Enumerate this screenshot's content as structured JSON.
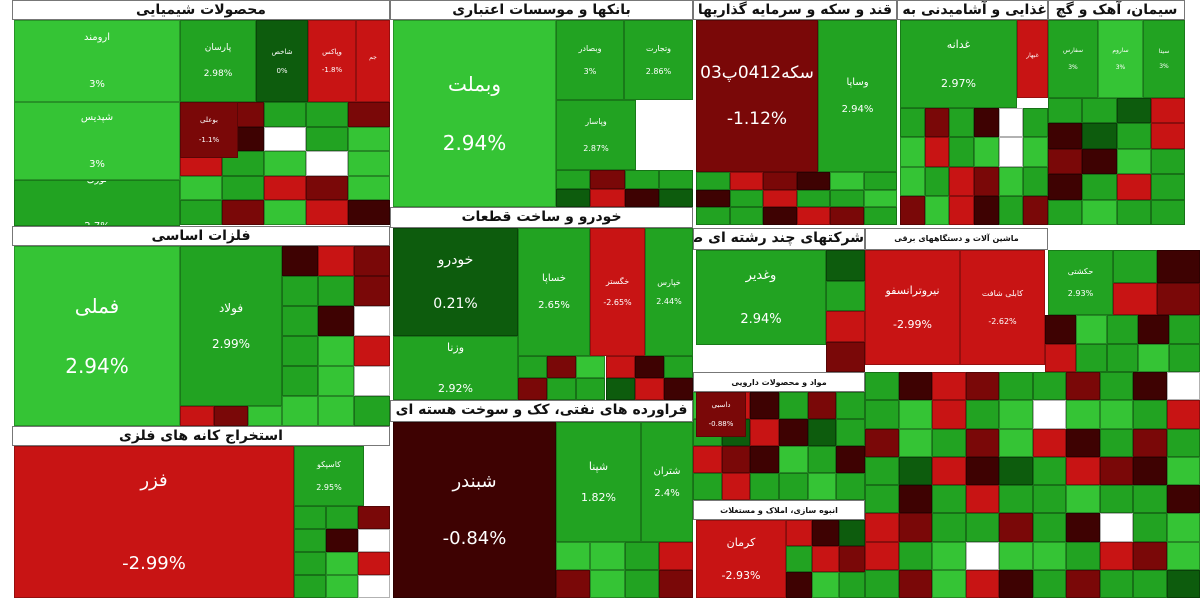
{
  "chart_data": {
    "type": "treemap",
    "colors": {
      "strong_up": "#35c435",
      "up": "#22a322",
      "flat_up": "#0d5c0d",
      "down": "#c81414",
      "strong_down": "#7a0808",
      "deep_down": "#3e0202"
    },
    "sectors": [
      {
        "name": "محصولات شیمیایی"
      },
      {
        "name": "بانکها و موسسات اعتباری"
      },
      {
        "name": "قند و سکه و سرمایه گذاریها"
      },
      {
        "name": "غذایی و آشامیدنی به جز قند"
      },
      {
        "name": "سیمان، آهک و گچ"
      },
      {
        "name": "فلزات اساسی"
      },
      {
        "name": "خودرو و ساخت قطعات"
      },
      {
        "name": "شرکتهای چند رشته ای صنعتی"
      },
      {
        "name": "ماشین آلات و دستگاههای برقی"
      },
      {
        "name": "مواد و محصولات دارویی"
      },
      {
        "name": "استخراج کانه های فلزی"
      },
      {
        "name": "فراورده های نفتی، کک و سوخت هسته ای"
      },
      {
        "name": "انبوه سازی، املاک و مستغلات"
      }
    ],
    "tiles": [
      {
        "name": "ارومند",
        "pct": "3%",
        "tone": "strong_up"
      },
      {
        "name": "شپدیس",
        "pct": "3%",
        "tone": "strong_up"
      },
      {
        "name": "نوری",
        "pct": "2.7%",
        "tone": "up"
      },
      {
        "name": "پارسان",
        "pct": "2.98%",
        "tone": "up"
      },
      {
        "name": "شاخص",
        "pct": "0%",
        "tone": "flat_up"
      },
      {
        "name": "وپاکس",
        "pct": "-1.8%",
        "tone": "down"
      },
      {
        "name": "جم",
        "pct": "",
        "tone": "down"
      },
      {
        "name": "بوعلی",
        "pct": "-1.1%",
        "tone": "strong_down"
      },
      {
        "name": "وبملت",
        "pct": "2.94%",
        "tone": "strong_up"
      },
      {
        "name": "وبصادر",
        "pct": "3%",
        "tone": "up"
      },
      {
        "name": "وتجارت",
        "pct": "2.86%",
        "tone": "up"
      },
      {
        "name": "وپاسار",
        "pct": "2.87%",
        "tone": "up"
      },
      {
        "name": "سکه0412پ03",
        "pct": "-1.12%",
        "tone": "strong_down"
      },
      {
        "name": "وساپا",
        "pct": "2.94%",
        "tone": "up"
      },
      {
        "name": "غدانه",
        "pct": "2.97%",
        "tone": "up"
      },
      {
        "name": "غبهار",
        "pct": "",
        "tone": "down"
      },
      {
        "name": "سفارس",
        "pct": "3%",
        "tone": "up"
      },
      {
        "name": "ساروم",
        "pct": "3%",
        "tone": "strong_up"
      },
      {
        "name": "سیتا",
        "pct": "3%",
        "tone": "up"
      },
      {
        "name": "فملی",
        "pct": "2.94%",
        "tone": "strong_up"
      },
      {
        "name": "فولاد",
        "pct": "2.99%",
        "tone": "up"
      },
      {
        "name": "خودرو",
        "pct": "0.21%",
        "tone": "flat_up"
      },
      {
        "name": "وزنا",
        "pct": "2.92%",
        "tone": "up"
      },
      {
        "name": "خساپا",
        "pct": "2.65%",
        "tone": "up"
      },
      {
        "name": "خگستر",
        "pct": "-2.65%",
        "tone": "down"
      },
      {
        "name": "خپارس",
        "pct": "2.44%",
        "tone": "up"
      },
      {
        "name": "وغدیر",
        "pct": "2.94%",
        "tone": "up"
      },
      {
        "name": "نیروترانسفو",
        "pct": "-2.99%",
        "tone": "down"
      },
      {
        "name": "کابلی شافت",
        "pct": "-2.62%",
        "tone": "down"
      },
      {
        "name": "حکشتی",
        "pct": "2.93%",
        "tone": "up"
      },
      {
        "name": "فزر",
        "pct": "-2.99%",
        "tone": "down"
      },
      {
        "name": "کاسپکو",
        "pct": "2.95%",
        "tone": "up"
      },
      {
        "name": "شبندر",
        "pct": "-0.84%",
        "tone": "deep_down"
      },
      {
        "name": "شپنا",
        "pct": "1.82%",
        "tone": "up"
      },
      {
        "name": "شتران",
        "pct": "2.4%",
        "tone": "up"
      },
      {
        "name": "کرمان",
        "pct": "-2.93%",
        "tone": "down"
      },
      {
        "name": "داسبی",
        "pct": "-0.88%",
        "tone": "strong_down"
      }
    ]
  }
}
